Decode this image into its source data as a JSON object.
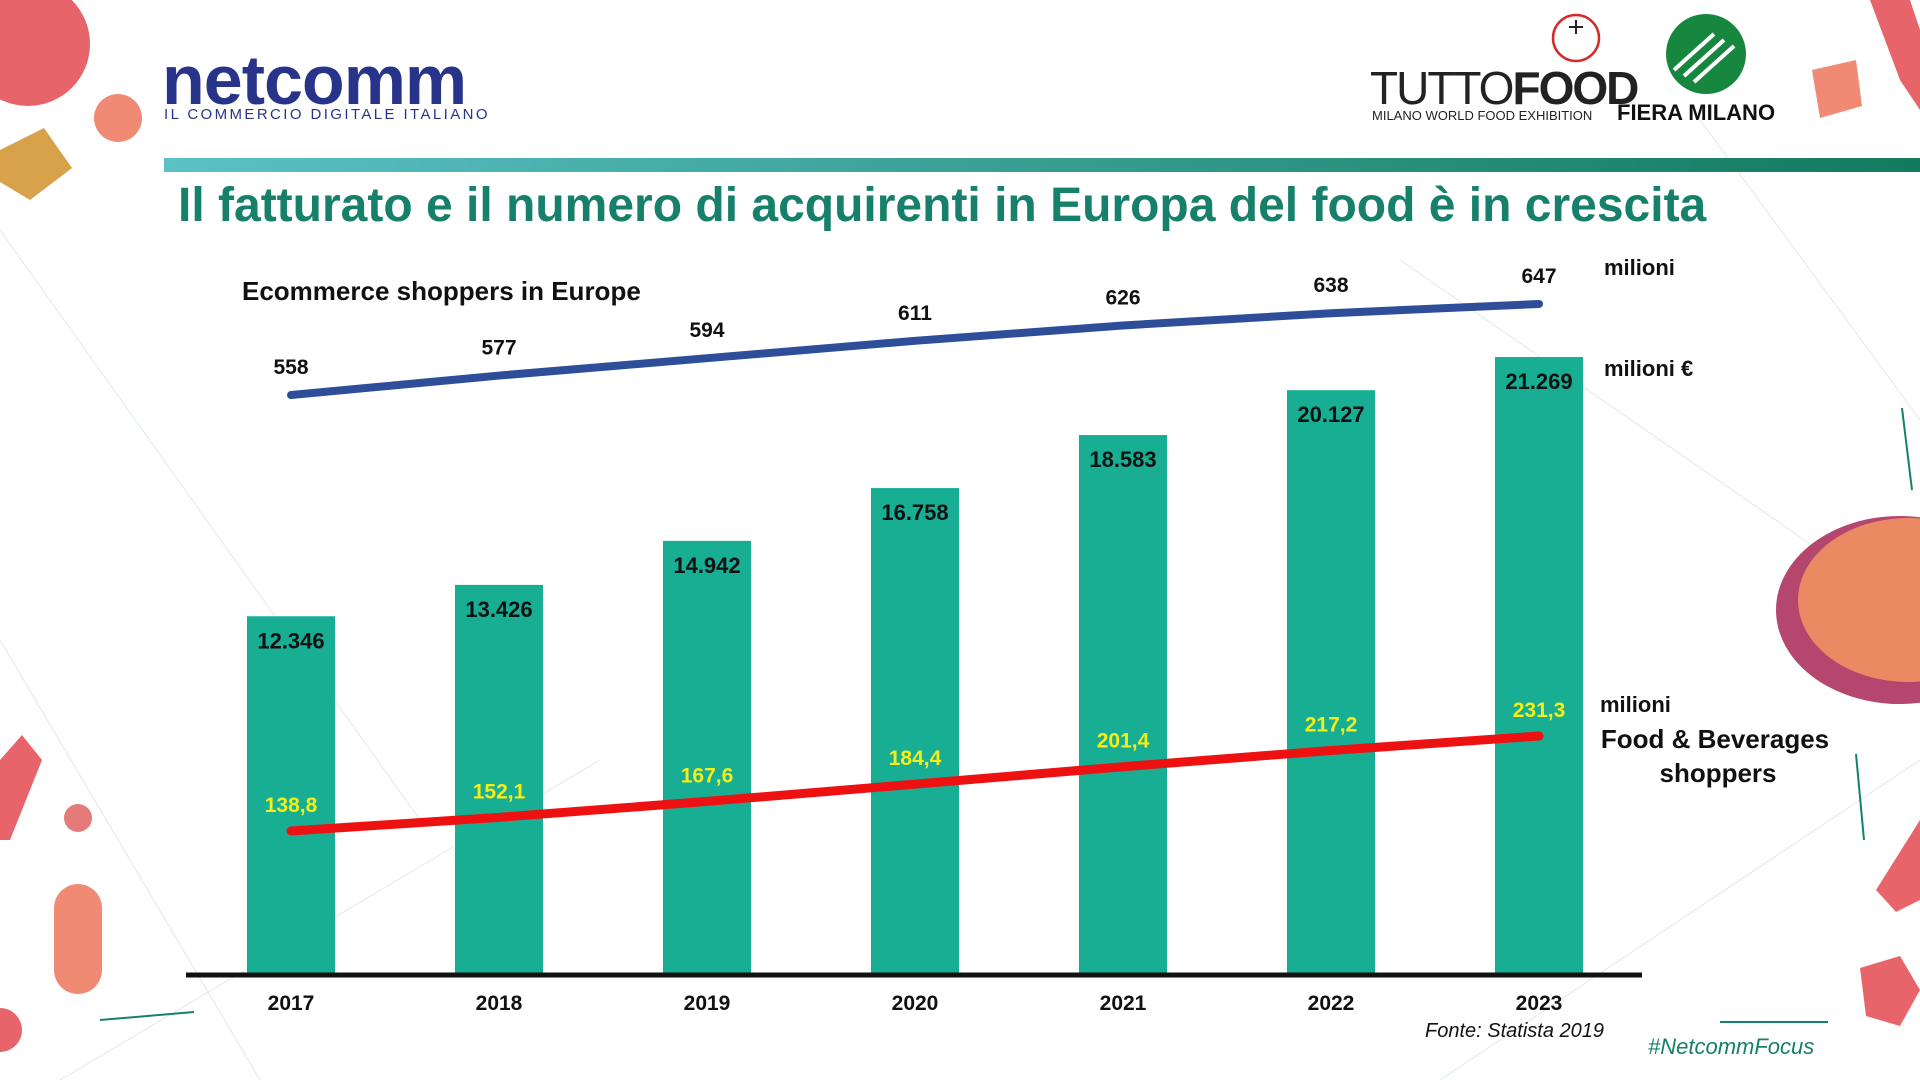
{
  "header": {
    "brand_left": "netcomm",
    "brand_left_tagline": "IL COMMERCIO DIGITALE ITALIANO",
    "brand_right_1_light": "TUTTO",
    "brand_right_1_bold": "FOOD",
    "brand_right_1_sub": "MILANO WORLD FOOD EXHIBITION",
    "brand_right_2": "FIERA MILANO"
  },
  "slide": {
    "title": "Il fatturato e il numero di acquirenti in Europa del food è in crescita",
    "source": "Fonte: Statista 2019",
    "hashtag": "#NetcommFocus"
  },
  "colors": {
    "bar": "#17ae94",
    "shoppers_line": "#2e4e9a",
    "fb_line": "#ee1111",
    "fb_label": "#f4ee19",
    "title": "#16806a",
    "brand_blue": "#28348a"
  },
  "chart_data": {
    "type": "bar",
    "categories": [
      "2017",
      "2018",
      "2019",
      "2020",
      "2021",
      "2022",
      "2023"
    ],
    "series": [
      {
        "type": "bar",
        "unit": "milioni €",
        "values": [
          12346,
          13426,
          14942,
          16758,
          18583,
          20127,
          21269
        ],
        "labels": [
          "12.346",
          "13.426",
          "14.942",
          "16.758",
          "18.583",
          "20.127",
          "21.269"
        ]
      },
      {
        "type": "line",
        "name": "Ecommerce shoppers in Europe",
        "unit": "milioni",
        "values": [
          558,
          577,
          594,
          611,
          626,
          638,
          647
        ],
        "labels": [
          "558",
          "577",
          "594",
          "611",
          "626",
          "638",
          "647"
        ]
      },
      {
        "type": "line",
        "name": "Food & Beverages shoppers",
        "name_lines": [
          "Food & Beverages",
          "shoppers"
        ],
        "unit": "milioni",
        "values": [
          138.8,
          152.1,
          167.6,
          184.4,
          201.4,
          217.2,
          231.3
        ],
        "labels": [
          "138,8",
          "152,1",
          "167,6",
          "184,4",
          "201,4",
          "217,2",
          "231,3"
        ]
      }
    ],
    "ylim": [
      0,
      21269
    ],
    "grid": false,
    "legend": "none"
  }
}
